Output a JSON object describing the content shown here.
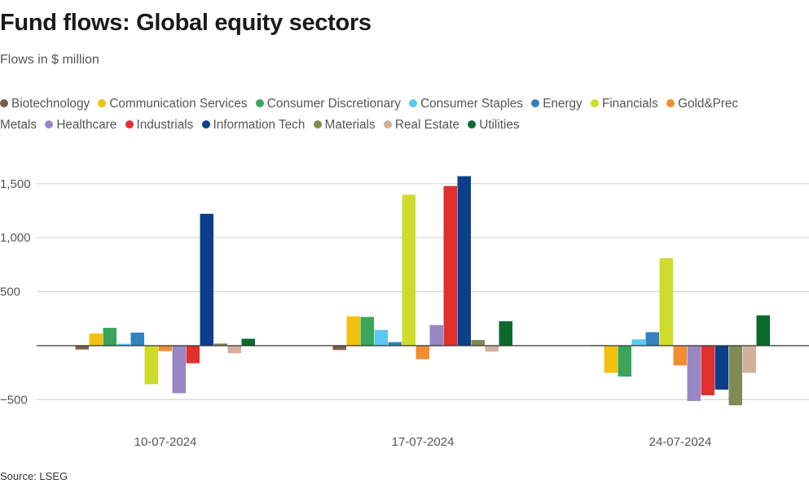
{
  "title": "Fund flows: Global equity sectors",
  "subtitle": "Flows in $ million",
  "source": "Source: LSEG",
  "chart_data": {
    "type": "bar",
    "categories": [
      "10-07-2024",
      "17-07-2024",
      "24-07-2024"
    ],
    "ylim": [
      -600,
      1650
    ],
    "yticks": [
      -500,
      0,
      500,
      1000,
      1500
    ],
    "ytick_labels": [
      "−500",
      "",
      "500",
      "1,000",
      "1,500"
    ],
    "grid": true,
    "legend_position": "top",
    "series": [
      {
        "name": "Biotechnology",
        "color": "#7a5c4a",
        "values": [
          -35,
          -40,
          5
        ]
      },
      {
        "name": "Communication Services",
        "color": "#f2c10e",
        "values": [
          113,
          271,
          -251
        ]
      },
      {
        "name": "Consumer Discretionary",
        "color": "#3aa55b",
        "values": [
          165,
          266,
          -286
        ]
      },
      {
        "name": "Consumer Staples",
        "color": "#5bc8f0",
        "values": [
          18,
          146,
          58
        ]
      },
      {
        "name": "Energy",
        "color": "#3282c0",
        "values": [
          121,
          33,
          125
        ]
      },
      {
        "name": "Financials",
        "color": "#cddc2a",
        "values": [
          -357,
          1398,
          811
        ]
      },
      {
        "name": "Gold&Prec Metals",
        "color": "#f28c2e",
        "values": [
          -50,
          -125,
          -183
        ]
      },
      {
        "name": "Healthcare",
        "color": "#9887c5",
        "values": [
          -440,
          191,
          -512
        ]
      },
      {
        "name": "Industrials",
        "color": "#e0302e",
        "values": [
          -163,
          1478,
          -459
        ]
      },
      {
        "name": "Information Tech",
        "color": "#0b3f8a",
        "values": [
          1221,
          1569,
          -407
        ]
      },
      {
        "name": "Materials",
        "color": "#7f8a55",
        "values": [
          20,
          53,
          -552
        ]
      },
      {
        "name": "Real Estate",
        "color": "#d1b09a",
        "values": [
          -70,
          -55,
          -251
        ]
      },
      {
        "name": "Utilities",
        "color": "#0c6a2c",
        "values": [
          64,
          226,
          281
        ]
      }
    ]
  }
}
